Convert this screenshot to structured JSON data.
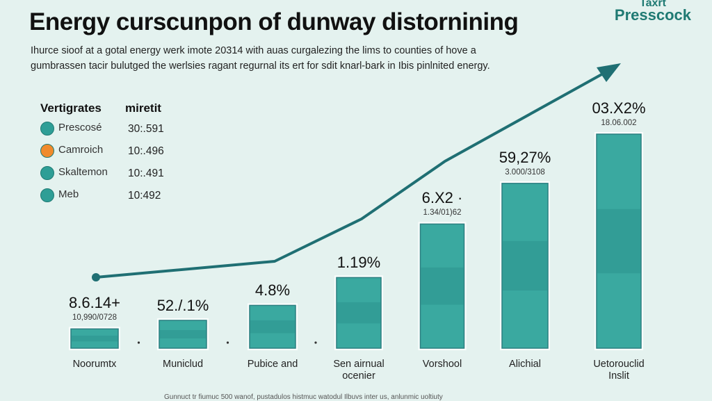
{
  "header": {
    "title": "Energy curscunpon of dunway distornining",
    "subtitle_line1": "Ihurce sioof at a gotal energy werk imote 20314 with auas curgalezing the lims to counties of hove a",
    "subtitle_line2": "gumbrassen tacir bulutged the werlsies ragant regurnal its ert for sdit knarl-bark in Ibis pinlnited energy.",
    "logo_line1": "Taxrt",
    "logo_line2": "Presscock"
  },
  "legend": {
    "header_name": "Vertigrates",
    "header_value": "miretit",
    "items": [
      {
        "name": "Prescosé",
        "value": "30:.591",
        "color": "#2e9e96"
      },
      {
        "name": "Camroich",
        "value": "10:.496",
        "color": "#f08a2c"
      },
      {
        "name": "Skaltemon",
        "value": "10:.491",
        "color": "#2e9e96"
      },
      {
        "name": "Meb",
        "value": "10:492",
        "color": "#2e9e96"
      }
    ]
  },
  "chart_data": {
    "type": "bar",
    "title": "Energy curscunpon of dunway distornining",
    "categories": [
      "Noorumtx",
      "Municlud",
      "Pubice and",
      "Sen airnual ocenier",
      "Vorshool",
      "Alichial",
      "Uetorouclid Inslit"
    ],
    "values": [
      9,
      13,
      20,
      33,
      58,
      77,
      100
    ],
    "value_labels": [
      "8.6.14+",
      "52./.1%",
      "4.8%",
      "1.19%",
      "6.X2 ·",
      "59,27%",
      "03.X2%"
    ],
    "sub_labels": [
      "10,990/0728",
      "",
      "",
      "",
      "1.34/01)62",
      "3.000/3108",
      "18.06.002"
    ],
    "trend_line": [
      8,
      14,
      30,
      52,
      88
    ],
    "ylim": [
      0,
      100
    ],
    "grid": false,
    "colors": {
      "bar": "#3aa9a0",
      "bar_border": "#2b7f80",
      "trend": "#1f6f73"
    }
  },
  "footer": "Gunnuct tr fiumuc 500 wanof, pustadulos histmuc watodul Ilbuvs inter us, anlunmic uoltiuty"
}
